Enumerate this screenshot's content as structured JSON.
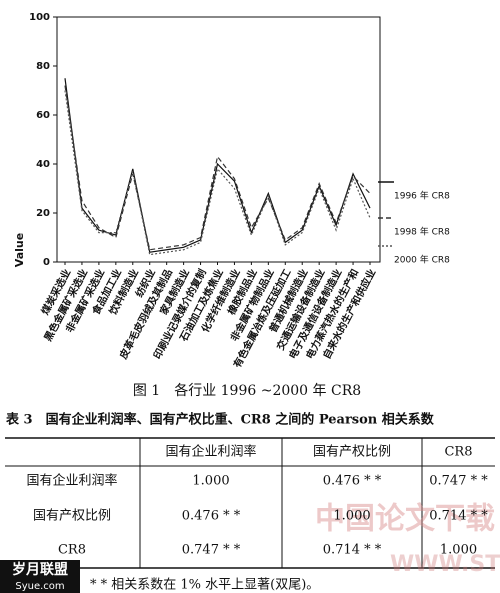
{
  "chart_data": {
    "type": "line",
    "ylabel": "Value",
    "categories": [
      "煤炭采选业",
      "黑色金属矿采选业",
      "非金属矿采选业",
      "食品加工业",
      "饮料制造业",
      "纺织业",
      "皮革毛皮羽绒及其制品",
      "家具制造业",
      "印刷业记录媒介的复制",
      "石油加工及炼焦业",
      "化学纤维制造业",
      "橡胶制品业",
      "非金属矿物制品业",
      "有色金属冶炼及压延加工",
      "普通机械制造业",
      "交通运输设备制造业",
      "电子及通信设备制造业",
      "电力蒸汽热水的生产和",
      "自来水的生产和供应业"
    ],
    "series": [
      {
        "name": "1996 年 CR8",
        "color": "#111111",
        "style": "solid",
        "values": [
          75,
          22,
          13,
          11,
          38,
          4,
          5,
          6,
          9,
          40,
          33,
          12,
          28,
          8,
          13,
          31,
          15,
          36,
          22
        ]
      },
      {
        "name": "1998 年 CR8",
        "color": "#333333",
        "style": "dashed",
        "values": [
          72,
          25,
          14,
          10,
          36,
          5,
          6,
          7,
          10,
          43,
          34,
          14,
          26,
          9,
          14,
          32,
          16,
          35,
          28
        ]
      },
      {
        "name": "2000 年 CR8",
        "color": "#555555",
        "style": "dotted",
        "values": [
          70,
          21,
          12,
          12,
          37,
          3,
          4,
          5,
          8,
          38,
          30,
          11,
          27,
          7,
          12,
          30,
          13,
          34,
          18
        ]
      }
    ],
    "ylim": [
      0,
      100
    ],
    "yticks": [
      0,
      20,
      40,
      60,
      80,
      100
    ]
  },
  "caption": "图 1　各行业 1996 ~2000 年 CR8",
  "table": {
    "title": "表 3　国有企业利润率、国有产权比重、CR8 之间的 Pearson 相关系数",
    "header": [
      "国有企业利润率",
      "国有产权比例",
      "CR8"
    ],
    "rows": [
      [
        "国有企业利润率",
        "1.000",
        "0.476 * *",
        "0.747 * *"
      ],
      [
        "国有产权比例",
        "0.476 * *",
        "1.000",
        "0.714 * *"
      ],
      [
        "CR8",
        "0.747 * *",
        "0.714 * *",
        "1.000"
      ]
    ]
  },
  "footnote": "* * 相关系数在 1% 水平上显著(双尾)。",
  "watermarks": [
    "中国论文下载",
    "WWW.STUDA",
    "岁月联盟",
    "Syue.com"
  ]
}
